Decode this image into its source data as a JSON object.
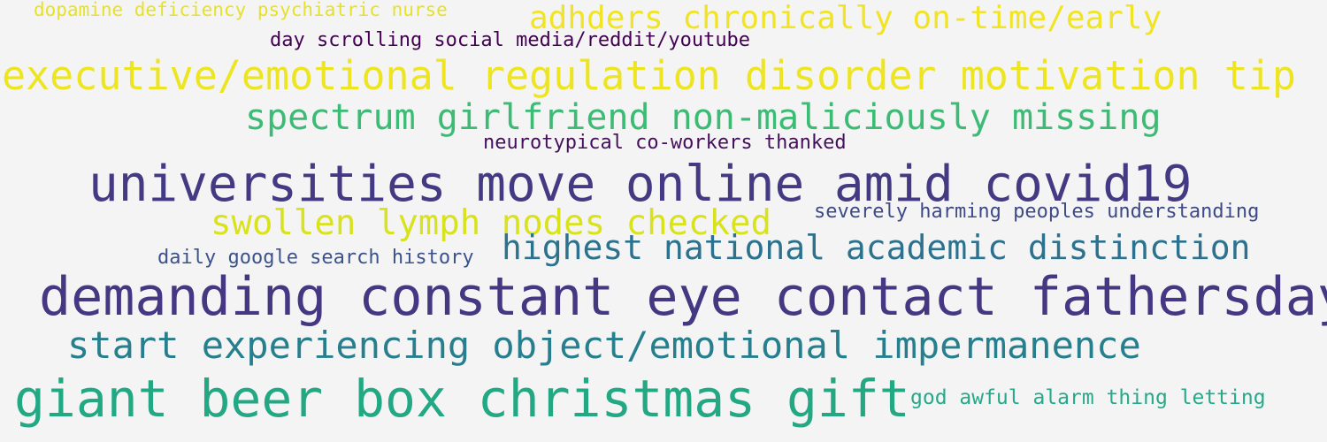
{
  "phrases": [
    {
      "text": "dopamine deficiency psychiatric nurse",
      "color": "#e6e12a"
    },
    {
      "text": "adhders chronically on-time/early",
      "color": "#f0e424"
    },
    {
      "text": "day scrolling social media/reddit/youtube",
      "color": "#440154"
    },
    {
      "text": "executive/emotional regulation disorder motivation tip",
      "color": "#ede522"
    },
    {
      "text": "spectrum girlfriend non-maliciously missing",
      "color": "#3cbb75"
    },
    {
      "text": "neurotypical co-workers thanked",
      "color": "#440f5c"
    },
    {
      "text": "universities move online amid covid19",
      "color": "#433a83"
    },
    {
      "text": "swollen lymph nodes checked",
      "color": "#d8e21d"
    },
    {
      "text": "severely harming peoples understanding",
      "color": "#3e4a88"
    },
    {
      "text": "highest national academic distinction",
      "color": "#2c728e"
    },
    {
      "text": "daily google search history",
      "color": "#3b528b"
    },
    {
      "text": "demanding constant eye contact fathersday",
      "color": "#453781"
    },
    {
      "text": "start experiencing object/emotional impermanence",
      "color": "#277f8e"
    },
    {
      "text": "giant beer box christmas gift",
      "color": "#23a884"
    },
    {
      "text": "god awful alarm thing letting",
      "color": "#26a98a"
    }
  ]
}
